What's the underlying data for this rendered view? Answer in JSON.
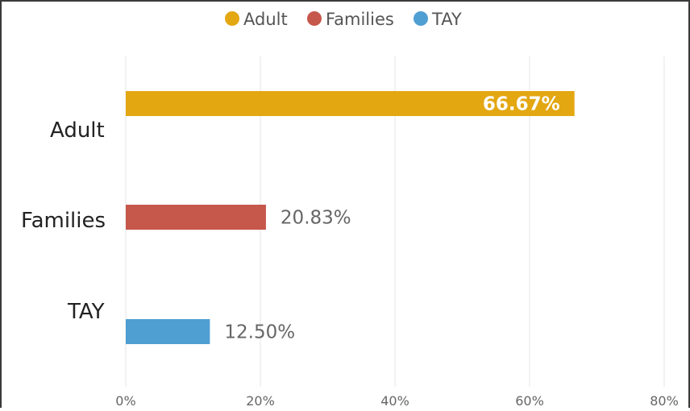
{
  "chart_data": {
    "type": "bar",
    "orientation": "horizontal",
    "categories": [
      "Adult",
      "Families",
      "TAY"
    ],
    "values": [
      66.67,
      20.83,
      12.5
    ],
    "data_labels": [
      "66.67%",
      "20.83%",
      "12.50%"
    ],
    "colors": [
      "#e3a712",
      "#c6574b",
      "#4f9fd2"
    ],
    "legend": {
      "placement": "top",
      "entries": [
        "Adult",
        "Families",
        "TAY"
      ]
    },
    "xlim": [
      0,
      80
    ],
    "x_ticks": [
      0,
      20,
      40,
      60,
      80
    ],
    "x_tick_labels": [
      "0%",
      "20%",
      "40%",
      "60%",
      "80%"
    ],
    "grid": "vertical",
    "title": "",
    "xlabel": "",
    "ylabel": ""
  }
}
